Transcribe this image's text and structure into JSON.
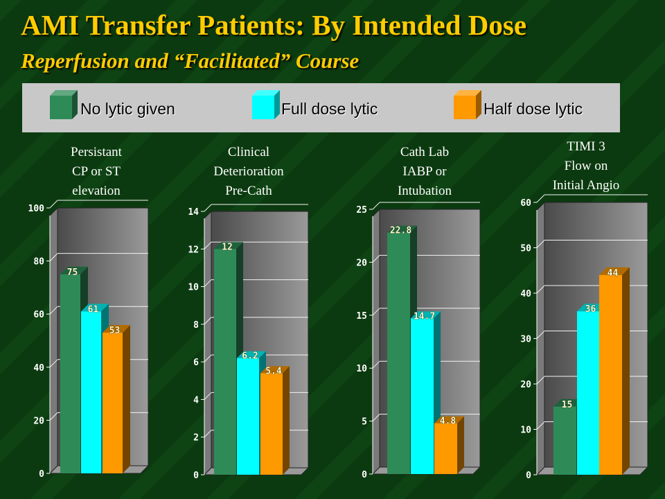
{
  "title": "AMI Transfer Patients: By Intended Dose",
  "subtitle": "Reperfusion and “Facilitated” Course",
  "legend": {
    "items": [
      {
        "label": "No lytic given",
        "color": "#2e8b57"
      },
      {
        "label": "Full dose lytic",
        "color": "#00ffff"
      },
      {
        "label": "Half dose lytic",
        "color": "#ff9900"
      }
    ]
  },
  "colors": {
    "background": "#0c3a10",
    "title": "#ffcc00",
    "plot_area": "#606060",
    "bar_label": "#ffffcc"
  },
  "chart_data": [
    {
      "type": "bar",
      "title": "Persistant CP or ST elevation",
      "title_lines": [
        "Persistant",
        "CP or ST",
        "elevation"
      ],
      "series": [
        {
          "name": "No lytic given",
          "values": [
            75
          ]
        },
        {
          "name": "Full dose lytic",
          "values": [
            61
          ]
        },
        {
          "name": "Half dose lytic",
          "values": [
            53
          ]
        }
      ],
      "ylim": [
        0,
        100
      ],
      "yticks": [
        0,
        20,
        40,
        60,
        80,
        100
      ],
      "grid": true
    },
    {
      "type": "bar",
      "title": "Clinical Deterioration Pre-Cath",
      "title_lines": [
        "Clinical",
        "Deterioration",
        "Pre-Cath"
      ],
      "series": [
        {
          "name": "No lytic given",
          "values": [
            12
          ]
        },
        {
          "name": "Full dose lytic",
          "values": [
            6.2
          ]
        },
        {
          "name": "Half dose lytic",
          "values": [
            5.4
          ]
        }
      ],
      "ylim": [
        0,
        14
      ],
      "yticks": [
        0,
        2,
        4,
        6,
        8,
        10,
        12,
        14
      ],
      "grid": true
    },
    {
      "type": "bar",
      "title": "Cath Lab IABP or Intubation",
      "title_lines": [
        "Cath Lab",
        "IABP or",
        "Intubation"
      ],
      "series": [
        {
          "name": "No lytic given",
          "values": [
            22.8
          ]
        },
        {
          "name": "Full dose lytic",
          "values": [
            14.7
          ]
        },
        {
          "name": "Half dose lytic",
          "values": [
            4.8
          ]
        }
      ],
      "ylim": [
        0,
        25
      ],
      "yticks": [
        0,
        5,
        10,
        15,
        20,
        25
      ],
      "grid": true
    },
    {
      "type": "bar",
      "title": "TIMI 3 Flow on Initial Angio",
      "title_lines": [
        "TIMI 3",
        "Flow on",
        "Initial Angio"
      ],
      "series": [
        {
          "name": "No lytic given",
          "values": [
            15
          ]
        },
        {
          "name": "Full dose lytic",
          "values": [
            36
          ]
        },
        {
          "name": "Half dose lytic",
          "values": [
            44
          ]
        }
      ],
      "ylim": [
        0,
        60
      ],
      "yticks": [
        0,
        10,
        20,
        30,
        40,
        50,
        60
      ],
      "grid": true
    }
  ]
}
